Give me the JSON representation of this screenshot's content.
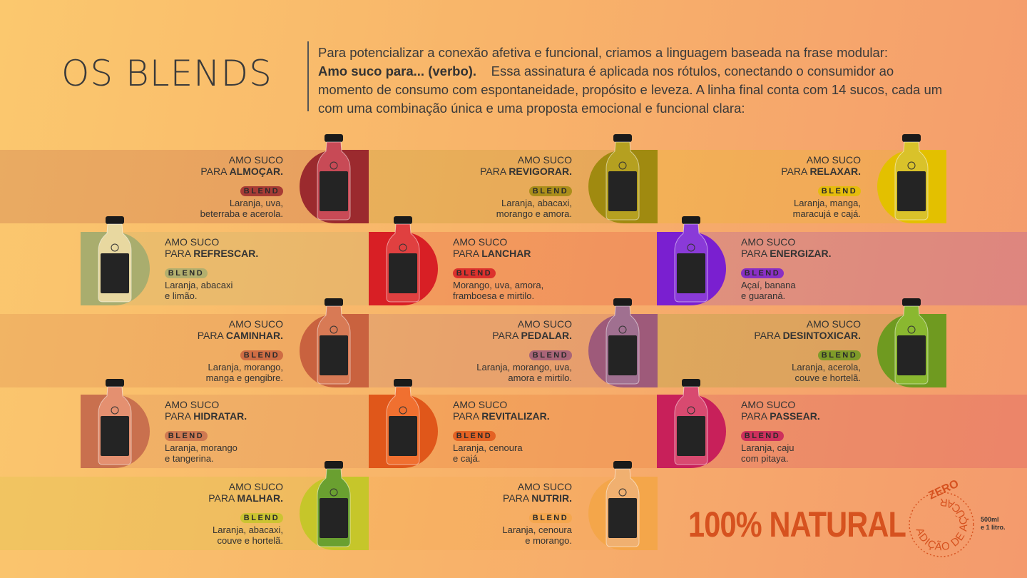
{
  "header": {
    "title": "OS BLENDS",
    "intro_lead": "Para potencializar a conexão afetiva e funcional, criamos a linguagem baseada na frase modular:",
    "intro_bold": "Amo suco para... (verbo).",
    "intro_rest": "Essa assinatura é aplicada nos rótulos, conectando o consumidor ao momento de consumo com espontaneidade, propósito e leveza. A linha final conta com 14 sucos, cada um com uma combinação única e uma proposta emocional e funcional clara:"
  },
  "blends": [
    {
      "line1": "AMO SUCO",
      "prefix": "PARA",
      "verb": "ALMOÇAR.",
      "badge": "BLEND",
      "ingredients": [
        "Laranja, uva,",
        "beterraba e acerola."
      ]
    },
    {
      "line1": "AMO SUCO",
      "prefix": "PARA",
      "verb": "REVIGORAR.",
      "badge": "BLEND",
      "ingredients": [
        "Laranja, abacaxi,",
        "morango e amora."
      ]
    },
    {
      "line1": "AMO SUCO",
      "prefix": "PARA",
      "verb": "RELAXAR.",
      "badge": "BLEND",
      "ingredients": [
        "Laranja, manga,",
        "maracujá e cajá."
      ]
    },
    {
      "line1": "AMO SUCO",
      "prefix": "PARA",
      "verb": "REFRESCAR.",
      "badge": "BLEND",
      "ingredients": [
        "Laranja, abacaxi",
        "e limão."
      ]
    },
    {
      "line1": "AMO SUCO",
      "prefix": "PARA",
      "verb": "LANCHAR",
      "badge": "BLEND",
      "ingredients": [
        "Morango, uva, amora,",
        "framboesa e mirtilo."
      ]
    },
    {
      "line1": "AMO SUCO",
      "prefix": "PARA",
      "verb": "ENERGIZAR.",
      "badge": "BLEND",
      "ingredients": [
        "Açaí, banana",
        "e guaraná."
      ]
    },
    {
      "line1": "AMO SUCO",
      "prefix": "PARA",
      "verb": "CAMINHAR.",
      "badge": "BLEND",
      "ingredients": [
        "Laranja, morango,",
        "manga e gengibre."
      ]
    },
    {
      "line1": "AMO SUCO",
      "prefix": "PARA",
      "verb": "PEDALAR.",
      "badge": "BLEND",
      "ingredients": [
        "Laranja, morango, uva,",
        "amora e mirtilo."
      ]
    },
    {
      "line1": "AMO SUCO",
      "prefix": "PARA",
      "verb": "DESINTOXICAR.",
      "badge": "BLEND",
      "ingredients": [
        "Laranja, acerola,",
        "couve e hortelã."
      ]
    },
    {
      "line1": "AMO SUCO",
      "prefix": "PARA",
      "verb": "HIDRATAR.",
      "badge": "BLEND",
      "ingredients": [
        "Laranja, morango",
        "e tangerina."
      ]
    },
    {
      "line1": "AMO SUCO",
      "prefix": "PARA",
      "verb": "REVITALIZAR.",
      "badge": "BLEND",
      "ingredients": [
        "Laranja, cenoura",
        "e cajá."
      ]
    },
    {
      "line1": "AMO SUCO",
      "prefix": "PARA",
      "verb": "PASSEAR.",
      "badge": "BLEND",
      "ingredients": [
        "Laranja, caju",
        "com pitaya."
      ]
    },
    {
      "line1": "AMO SUCO",
      "prefix": "PARA",
      "verb": "MALHAR.",
      "badge": "BLEND",
      "ingredients": [
        "Laranja, abacaxi,",
        "couve e hortelã."
      ]
    },
    {
      "line1": "AMO SUCO",
      "prefix": "PARA",
      "verb": "NUTRIR.",
      "badge": "BLEND",
      "ingredients": [
        "Laranja, cenoura",
        "e morango."
      ]
    }
  ],
  "footer": {
    "natural": "100% NATURAL",
    "zero": "ZERO",
    "sugar": "ADIÇÃO DE AÇÚCAR",
    "sizes": [
      "500ml",
      "e 1 litro."
    ]
  }
}
